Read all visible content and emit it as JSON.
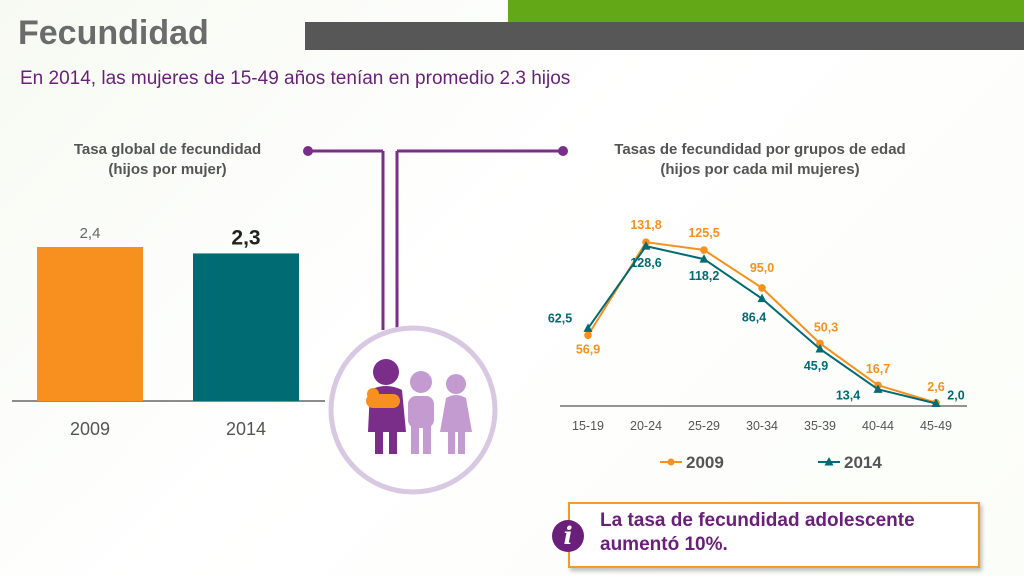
{
  "page": {
    "title": "Fecundidad",
    "subtitle": "En 2014, las mujeres de 15-49 años tenían en promedio 2.3 hijos",
    "info_text": "La tasa de fecundidad adolescente aumentó 10%.",
    "icons": [
      "info-icon",
      "family-icon"
    ]
  },
  "chart_data": [
    {
      "type": "bar",
      "title": "Tasa global de fecundidad\n(hijos por mujer)",
      "title_lines": [
        "Tasa global de fecundidad",
        "(hijos por mujer)"
      ],
      "categories": [
        "2009",
        "2014"
      ],
      "values": [
        2.4,
        2.3
      ],
      "value_labels": [
        "2,4",
        "2,3"
      ],
      "colors": [
        "#f7901e",
        "#006b73"
      ],
      "ylim": [
        0,
        2.4
      ]
    },
    {
      "type": "line",
      "title": "Tasas de fecundidad por grupos de edad\n(hijos por cada mil mujeres)",
      "title_lines": [
        "Tasas de fecundidad por grupos de edad",
        "(hijos por cada mil mujeres)"
      ],
      "categories": [
        "15-19",
        "20-24",
        "25-29",
        "30-34",
        "35-39",
        "40-44",
        "45-49"
      ],
      "series": [
        {
          "name": "2009",
          "values": [
            56.9,
            131.8,
            125.5,
            95.0,
            50.3,
            16.7,
            2.6
          ],
          "labels": [
            "56,9",
            "131,8",
            "125,5",
            "95,0",
            "50,3",
            "16,7",
            "2,6"
          ],
          "color": "#f7901e",
          "marker": "circle"
        },
        {
          "name": "2014",
          "values": [
            62.5,
            128.6,
            118.2,
            86.4,
            45.9,
            13.4,
            2.0
          ],
          "labels": [
            "62,5",
            "128,6",
            "118,2",
            "86,4",
            "45,9",
            "13,4",
            "2,0"
          ],
          "color": "#006b73",
          "marker": "triangle"
        }
      ],
      "ylim": [
        0,
        140
      ],
      "legend": "bottom"
    }
  ]
}
